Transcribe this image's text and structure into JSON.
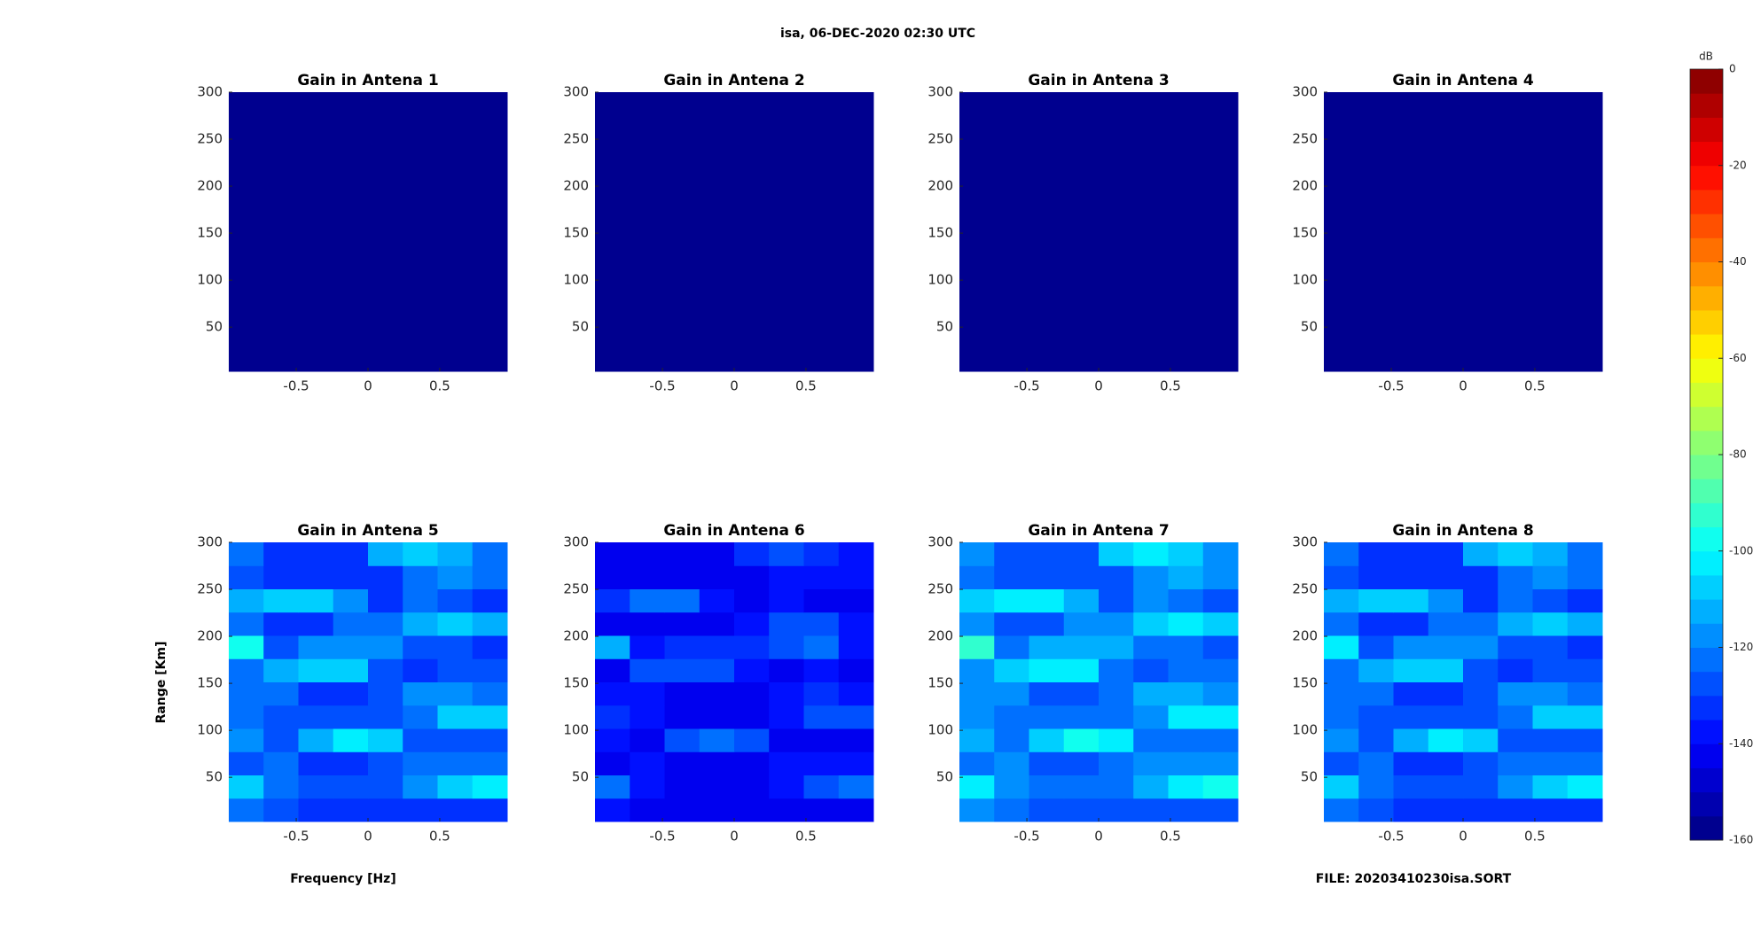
{
  "figure": {
    "title": "isa, 06-DEC-2020 02:30 UTC",
    "xlabel": "Frequency [Hz]",
    "ylabel": "Range [Km]",
    "footer": "FILE: 20203410230isa.SORT"
  },
  "colorbar": {
    "label": "dB",
    "colormap": "jet",
    "levels": 32,
    "clim": [
      -160,
      0
    ],
    "ticks": [
      0,
      -20,
      -40,
      -60,
      -80,
      -100,
      -120,
      -140,
      -160
    ]
  },
  "chart_data": [
    {
      "type": "heatmap",
      "title": "Gain in Antena 1",
      "xlim": [
        -0.97,
        0.97
      ],
      "ylim": [
        3,
        300
      ],
      "xticks": [
        -0.5,
        0,
        0.5
      ],
      "yticks": [
        50,
        100,
        150,
        200,
        250,
        300
      ],
      "z": [
        [
          -160
        ]
      ]
    },
    {
      "type": "heatmap",
      "title": "Gain in Antena 2",
      "xlim": [
        -0.97,
        0.97
      ],
      "ylim": [
        3,
        300
      ],
      "xticks": [
        -0.5,
        0,
        0.5
      ],
      "yticks": [
        50,
        100,
        150,
        200,
        250,
        300
      ],
      "z": [
        [
          -160
        ]
      ]
    },
    {
      "type": "heatmap",
      "title": "Gain in Antena 3",
      "xlim": [
        -0.97,
        0.97
      ],
      "ylim": [
        3,
        300
      ],
      "xticks": [
        -0.5,
        0,
        0.5
      ],
      "yticks": [
        50,
        100,
        150,
        200,
        250,
        300
      ],
      "z": [
        [
          -160
        ]
      ]
    },
    {
      "type": "heatmap",
      "title": "Gain in Antena 4",
      "xlim": [
        -0.97,
        0.97
      ],
      "ylim": [
        3,
        300
      ],
      "xticks": [
        -0.5,
        0,
        0.5
      ],
      "yticks": [
        50,
        100,
        150,
        200,
        250,
        300
      ],
      "z": [
        [
          -160
        ]
      ]
    },
    {
      "type": "heatmap",
      "title": "Gain in Antena 5",
      "xlim": [
        -0.97,
        0.97
      ],
      "ylim": [
        3,
        300
      ],
      "xticks": [
        -0.5,
        0,
        0.5
      ],
      "yticks": [
        50,
        100,
        150,
        200,
        250,
        300
      ],
      "z": [
        [
          -125,
          -130,
          -135,
          -135,
          -135,
          -135,
          -135,
          -135
        ],
        [
          -110,
          -125,
          -130,
          -130,
          -130,
          -120,
          -110,
          -105
        ],
        [
          -130,
          -125,
          -135,
          -135,
          -130,
          -125,
          -125,
          -125
        ],
        [
          -120,
          -130,
          -115,
          -105,
          -110,
          -130,
          -130,
          -130
        ],
        [
          -125,
          -130,
          -130,
          -130,
          -130,
          -125,
          -110,
          -110
        ],
        [
          -125,
          -125,
          -135,
          -135,
          -130,
          -120,
          -120,
          -125
        ],
        [
          -125,
          -115,
          -110,
          -110,
          -130,
          -135,
          -130,
          -130
        ],
        [
          -100,
          -130,
          -120,
          -120,
          -120,
          -130,
          -130,
          -135
        ],
        [
          -125,
          -135,
          -135,
          -125,
          -125,
          -115,
          -110,
          -115
        ],
        [
          -115,
          -110,
          -110,
          -120,
          -135,
          -125,
          -130,
          -135
        ],
        [
          -130,
          -135,
          -135,
          -135,
          -135,
          -125,
          -120,
          -125
        ],
        [
          -125,
          -135,
          -135,
          -135,
          -115,
          -110,
          -115,
          -125
        ]
      ]
    },
    {
      "type": "heatmap",
      "title": "Gain in Antena 6",
      "xlim": [
        -0.97,
        0.97
      ],
      "ylim": [
        3,
        300
      ],
      "xticks": [
        -0.5,
        0,
        0.5
      ],
      "yticks": [
        50,
        100,
        150,
        200,
        250,
        300
      ],
      "z": [
        [
          -140,
          -145,
          -145,
          -145,
          -145,
          -145,
          -145,
          -145
        ],
        [
          -125,
          -140,
          -145,
          -145,
          -145,
          -140,
          -130,
          -125
        ],
        [
          -145,
          -140,
          -145,
          -145,
          -145,
          -140,
          -140,
          -140
        ],
        [
          -140,
          -145,
          -130,
          -125,
          -130,
          -145,
          -145,
          -145
        ],
        [
          -135,
          -140,
          -145,
          -145,
          -145,
          -140,
          -130,
          -130
        ],
        [
          -140,
          -140,
          -145,
          -145,
          -145,
          -140,
          -135,
          -140
        ],
        [
          -145,
          -130,
          -130,
          -130,
          -140,
          -145,
          -140,
          -145
        ],
        [
          -115,
          -140,
          -135,
          -135,
          -135,
          -130,
          -125,
          -140
        ],
        [
          -145,
          -145,
          -145,
          -145,
          -140,
          -130,
          -130,
          -140
        ],
        [
          -135,
          -125,
          -125,
          -140,
          -145,
          -140,
          -145,
          -145
        ],
        [
          -145,
          -145,
          -145,
          -145,
          -145,
          -140,
          -140,
          -140
        ],
        [
          -145,
          -145,
          -145,
          -145,
          -135,
          -130,
          -135,
          -140
        ]
      ]
    },
    {
      "type": "heatmap",
      "title": "Gain in Antena 7",
      "xlim": [
        -0.97,
        0.97
      ],
      "ylim": [
        3,
        300
      ],
      "xticks": [
        -0.5,
        0,
        0.5
      ],
      "yticks": [
        50,
        100,
        150,
        200,
        250,
        300
      ],
      "z": [
        [
          -120,
          -125,
          -130,
          -130,
          -130,
          -130,
          -130,
          -130
        ],
        [
          -105,
          -120,
          -125,
          -125,
          -125,
          -115,
          -105,
          -100
        ],
        [
          -125,
          -120,
          -130,
          -130,
          -125,
          -120,
          -120,
          -120
        ],
        [
          -115,
          -125,
          -110,
          -100,
          -105,
          -125,
          -125,
          -125
        ],
        [
          -120,
          -125,
          -125,
          -125,
          -125,
          -120,
          -105,
          -105
        ],
        [
          -120,
          -120,
          -130,
          -130,
          -125,
          -115,
          -115,
          -120
        ],
        [
          -120,
          -110,
          -105,
          -105,
          -125,
          -130,
          -125,
          -125
        ],
        [
          -95,
          -125,
          -115,
          -115,
          -115,
          -125,
          -125,
          -130
        ],
        [
          -120,
          -130,
          -130,
          -120,
          -120,
          -110,
          -105,
          -110
        ],
        [
          -110,
          -105,
          -105,
          -115,
          -130,
          -120,
          -125,
          -130
        ],
        [
          -125,
          -130,
          -130,
          -130,
          -130,
          -120,
          -115,
          -120
        ],
        [
          -120,
          -130,
          -130,
          -130,
          -110,
          -105,
          -110,
          -120
        ]
      ]
    },
    {
      "type": "heatmap",
      "title": "Gain in Antena 8",
      "xlim": [
        -0.97,
        0.97
      ],
      "ylim": [
        3,
        300
      ],
      "xticks": [
        -0.5,
        0,
        0.5
      ],
      "yticks": [
        50,
        100,
        150,
        200,
        250,
        300
      ],
      "z": [
        [
          -125,
          -130,
          -135,
          -135,
          -135,
          -135,
          -135,
          -135
        ],
        [
          -110,
          -125,
          -130,
          -130,
          -130,
          -120,
          -110,
          -105
        ],
        [
          -130,
          -125,
          -135,
          -135,
          -130,
          -125,
          -125,
          -125
        ],
        [
          -120,
          -130,
          -115,
          -105,
          -110,
          -130,
          -130,
          -130
        ],
        [
          -125,
          -130,
          -130,
          -130,
          -130,
          -125,
          -110,
          -110
        ],
        [
          -125,
          -125,
          -135,
          -135,
          -130,
          -120,
          -120,
          -125
        ],
        [
          -125,
          -115,
          -110,
          -110,
          -130,
          -135,
          -130,
          -130
        ],
        [
          -105,
          -130,
          -120,
          -120,
          -120,
          -130,
          -130,
          -135
        ],
        [
          -125,
          -135,
          -135,
          -125,
          -125,
          -115,
          -110,
          -115
        ],
        [
          -115,
          -110,
          -110,
          -120,
          -135,
          -125,
          -130,
          -135
        ],
        [
          -130,
          -135,
          -135,
          -135,
          -135,
          -125,
          -120,
          -125
        ],
        [
          -125,
          -135,
          -135,
          -135,
          -115,
          -110,
          -115,
          -125
        ]
      ]
    }
  ]
}
